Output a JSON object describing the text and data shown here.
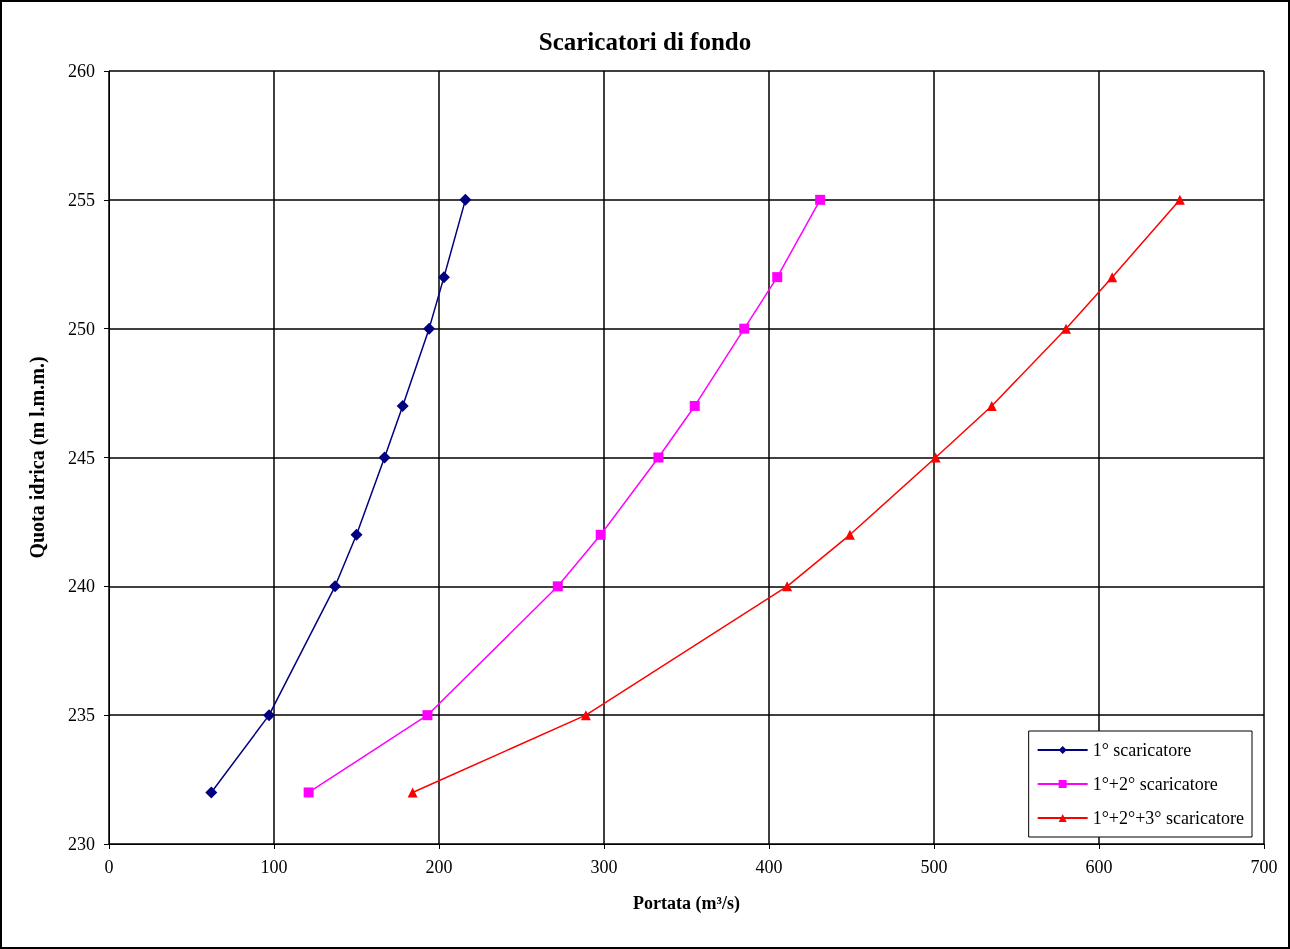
{
  "chart_data": {
    "type": "line",
    "title": "Scaricatori di fondo",
    "xlabel": "Portata (m³/s)",
    "ylabel": "Quota idrica (m l.m.m.)",
    "xlim": [
      0,
      700
    ],
    "xticks": [
      0,
      100,
      200,
      300,
      400,
      500,
      600,
      700
    ],
    "ylim": [
      230,
      260
    ],
    "yticks": [
      230,
      235,
      240,
      245,
      250,
      255,
      260
    ],
    "grid": true,
    "legend": "bottom right",
    "line_style": "solid",
    "series": [
      {
        "name": "1° scaricatore",
        "color": "#000080",
        "marker": "diamond",
        "x": [
          216,
          203,
          194,
          178,
          167,
          150,
          137,
          97,
          62
        ],
        "values": [
          255,
          252,
          250,
          247,
          245,
          242,
          240,
          235,
          232
        ]
      },
      {
        "name": "1°+2° scaricatore",
        "color": "#ff00ff",
        "marker": "square",
        "x": [
          431,
          405,
          385,
          355,
          333,
          298,
          272,
          193,
          121
        ],
        "values": [
          255,
          252,
          250,
          247,
          245,
          242,
          240,
          235,
          232
        ]
      },
      {
        "name": "1°+2°+3° scaricatore",
        "color": "#ff0000",
        "marker": "triangle",
        "x": [
          649,
          608,
          580,
          535,
          501,
          449,
          411,
          289,
          184
        ],
        "values": [
          255,
          252,
          250,
          247,
          245,
          242,
          240,
          235,
          232
        ]
      }
    ]
  }
}
